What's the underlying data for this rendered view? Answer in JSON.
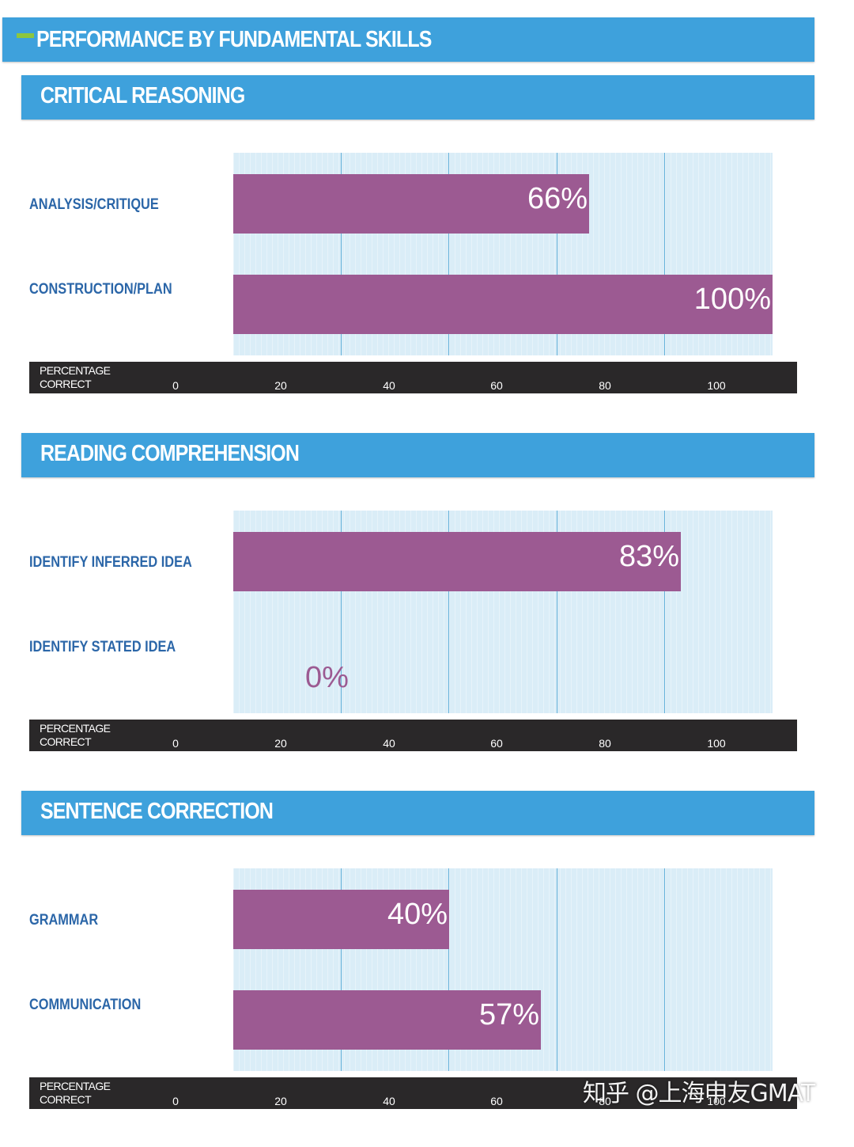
{
  "header": {
    "title": "PERFORMANCE BY FUNDAMENTAL SKILLS"
  },
  "axis": {
    "title_line1": "PERCENTAGE",
    "title_line2": "CORRECT",
    "ticks": [
      "0",
      "20",
      "40",
      "60",
      "80",
      "100"
    ]
  },
  "sections": [
    {
      "title": "CRITICAL REASONING",
      "items": [
        {
          "label": "ANALYSIS/CRITIQUE",
          "value": 66,
          "value_label": "66%"
        },
        {
          "label": "CONSTRUCTION/PLAN",
          "value": 100,
          "value_label": "100%"
        }
      ]
    },
    {
      "title": "READING COMPREHENSION",
      "items": [
        {
          "label": "IDENTIFY INFERRED IDEA",
          "value": 83,
          "value_label": "83%"
        },
        {
          "label": "IDENTIFY STATED IDEA",
          "value": 0,
          "value_label": "0%"
        }
      ]
    },
    {
      "title": "SENTENCE CORRECTION",
      "items": [
        {
          "label": "GRAMMAR",
          "value": 40,
          "value_label": "40%"
        },
        {
          "label": "COMMUNICATION",
          "value": 57,
          "value_label": "57%"
        }
      ]
    }
  ],
  "watermark": "知乎 @上海申友GMAT",
  "colors": {
    "header_blue": "#3ea1dc",
    "bar": "#9c5a92",
    "plot_bg": "#daedf7",
    "label_blue": "#2b66a8",
    "axis_strip": "#2a2829",
    "accent_green": "#8dc63f"
  },
  "chart_data": [
    {
      "type": "bar",
      "orientation": "horizontal",
      "title": "CRITICAL REASONING",
      "categories": [
        "ANALYSIS/CRITIQUE",
        "CONSTRUCTION/PLAN"
      ],
      "values": [
        66,
        100
      ],
      "xlabel": "PERCENTAGE CORRECT",
      "xlim": [
        0,
        100
      ],
      "grid": true
    },
    {
      "type": "bar",
      "orientation": "horizontal",
      "title": "READING COMPREHENSION",
      "categories": [
        "IDENTIFY INFERRED IDEA",
        "IDENTIFY STATED IDEA"
      ],
      "values": [
        83,
        0
      ],
      "xlabel": "PERCENTAGE CORRECT",
      "xlim": [
        0,
        100
      ],
      "grid": true
    },
    {
      "type": "bar",
      "orientation": "horizontal",
      "title": "SENTENCE CORRECTION",
      "categories": [
        "GRAMMAR",
        "COMMUNICATION"
      ],
      "values": [
        40,
        57
      ],
      "xlabel": "PERCENTAGE CORRECT",
      "xlim": [
        0,
        100
      ],
      "grid": true
    }
  ]
}
